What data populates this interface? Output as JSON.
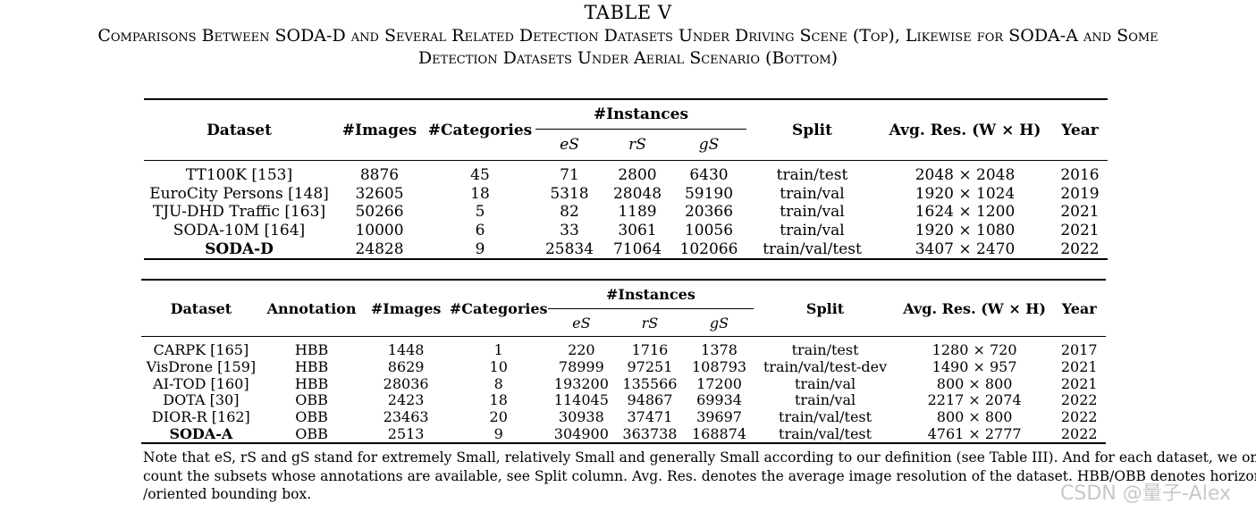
{
  "title_line1": "TABLE V",
  "title_line2": "Comparisons Between SODA-D and Several Related Detection Datasets Under Driving Scene (Top), Likewise for SODA-A and Some",
  "title_line3": "Detection Datasets Under Aerial Scenario (Bottom)",
  "table1": {
    "headers": {
      "dataset": "Dataset",
      "images": "#Images",
      "categories": "#Categories",
      "instances": "#Instances",
      "es": "eS",
      "rs": "rS",
      "gs": "gS",
      "split": "Split",
      "avg_res": "Avg. Res. (W × H)",
      "year": "Year"
    },
    "rows": [
      {
        "dataset": "TT100K [153]",
        "images": "8876",
        "categories": "45",
        "es": "71",
        "rs": "2800",
        "gs": "6430",
        "split": "train/test",
        "res": "2048 × 2048",
        "year": "2016"
      },
      {
        "dataset": "EuroCity Persons [148]",
        "images": "32605",
        "categories": "18",
        "es": "5318",
        "rs": "28048",
        "gs": "59190",
        "split": "train/val",
        "res": "1920 × 1024",
        "year": "2019"
      },
      {
        "dataset": "TJU-DHD Traffic [163]",
        "images": "50266",
        "categories": "5",
        "es": "82",
        "rs": "1189",
        "gs": "20366",
        "split": "train/val",
        "res": "1624 × 1200",
        "year": "2021"
      },
      {
        "dataset": "SODA-10M [164]",
        "images": "10000",
        "categories": "6",
        "es": "33",
        "rs": "3061",
        "gs": "10056",
        "split": "train/val",
        "res": "1920 × 1080",
        "year": "2021"
      },
      {
        "dataset": "SODA-D",
        "images": "24828",
        "categories": "9",
        "es": "25834",
        "rs": "71064",
        "gs": "102066",
        "split": "train/val/test",
        "res": "3407 × 2470",
        "year": "2022"
      }
    ]
  },
  "table2": {
    "headers": {
      "dataset": "Dataset",
      "annotation": "Annotation",
      "images": "#Images",
      "categories": "#Categories",
      "instances": "#Instances",
      "es": "eS",
      "rs": "rS",
      "gs": "gS",
      "split": "Split",
      "avg_res": "Avg. Res. (W × H)",
      "year": "Year"
    },
    "rows": [
      {
        "dataset": "CARPK [165]",
        "annotation": "HBB",
        "images": "1448",
        "categories": "1",
        "es": "220",
        "rs": "1716",
        "gs": "1378",
        "split": "train/test",
        "res": "1280 × 720",
        "year": "2017"
      },
      {
        "dataset": "VisDrone [159]",
        "annotation": "HBB",
        "images": "8629",
        "categories": "10",
        "es": "78999",
        "rs": "97251",
        "gs": "108793",
        "split": "train/val/test-dev",
        "res": "1490 × 957",
        "year": "2021"
      },
      {
        "dataset": "AI-TOD [160]",
        "annotation": "HBB",
        "images": "28036",
        "categories": "8",
        "es": "193200",
        "rs": "135566",
        "gs": "17200",
        "split": "train/val",
        "res": "800 × 800",
        "year": "2021"
      },
      {
        "dataset": "DOTA [30]",
        "annotation": "OBB",
        "images": "2423",
        "categories": "18",
        "es": "114045",
        "rs": "94867",
        "gs": "69934",
        "split": "train/val",
        "res": "2217 × 2074",
        "year": "2022"
      },
      {
        "dataset": "DIOR-R [162]",
        "annotation": "OBB",
        "images": "23463",
        "categories": "20",
        "es": "30938",
        "rs": "37471",
        "gs": "39697",
        "split": "train/val/test",
        "res": "800 × 800",
        "year": "2022"
      },
      {
        "dataset": "SODA-A",
        "annotation": "OBB",
        "images": "2513",
        "categories": "9",
        "es": "304900",
        "rs": "363738",
        "gs": "168874",
        "split": "train/val/test",
        "res": "4761 × 2777",
        "year": "2022"
      }
    ]
  },
  "note_line1": "Note that  eS, rS and gS stand for extremely Small, relatively Small and generally Small according to our definition (see Table III). And for each dataset, we only",
  "note_line2": "count the subsets whose annotations are available, see Split column. Avg. Res. denotes  the average image resolution of the dataset. HBB/OBB denotes horizontal",
  "note_line3": "/oriented bounding box.",
  "watermark": "CSDN @量子-Alex"
}
